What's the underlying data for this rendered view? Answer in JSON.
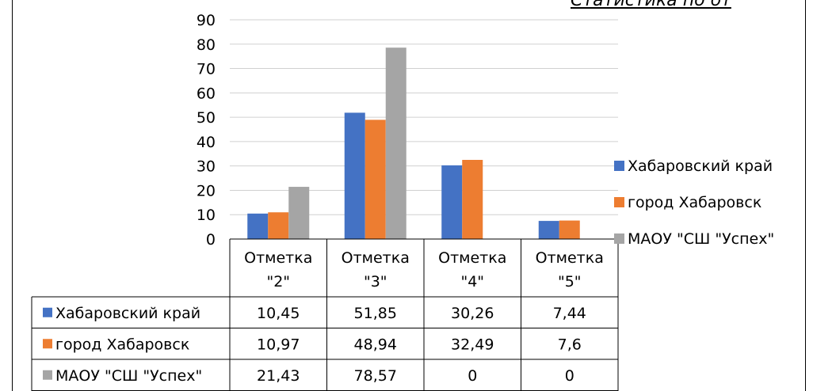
{
  "header_fragment": "Статистика по от",
  "chart_data": {
    "type": "bar",
    "categories": [
      "Отметка \"2\"",
      "Отметка \"3\"",
      "Отметка \"4\"",
      "Отметка \"5\""
    ],
    "category_lines": [
      [
        "Отметка",
        "\"2\""
      ],
      [
        "Отметка",
        "\"3\""
      ],
      [
        "Отметка",
        "\"4\""
      ],
      [
        "Отметка",
        "\"5\""
      ]
    ],
    "series": [
      {
        "name": "Хабаровский край",
        "values": [
          10.45,
          51.85,
          30.26,
          7.44
        ],
        "labels": [
          "10,45",
          "51,85",
          "30,26",
          "7,44"
        ],
        "color": "#4472C4"
      },
      {
        "name": "город Хабаровск",
        "values": [
          10.97,
          48.94,
          32.49,
          7.6
        ],
        "labels": [
          "10,97",
          "48,94",
          "32,49",
          "7,6"
        ],
        "color": "#ED7D31"
      },
      {
        "name": "МАОУ \"СШ \"Успех\"",
        "values": [
          21.43,
          78.57,
          0,
          0
        ],
        "labels": [
          "21,43",
          "78,57",
          "0",
          "0"
        ],
        "color": "#A5A5A5"
      }
    ],
    "yticks": [
      "0",
      "10",
      "20",
      "30",
      "40",
      "50",
      "60",
      "70",
      "80",
      "90"
    ],
    "ylim": [
      0,
      90
    ],
    "grid": true,
    "legend": "right",
    "data_table": true
  }
}
